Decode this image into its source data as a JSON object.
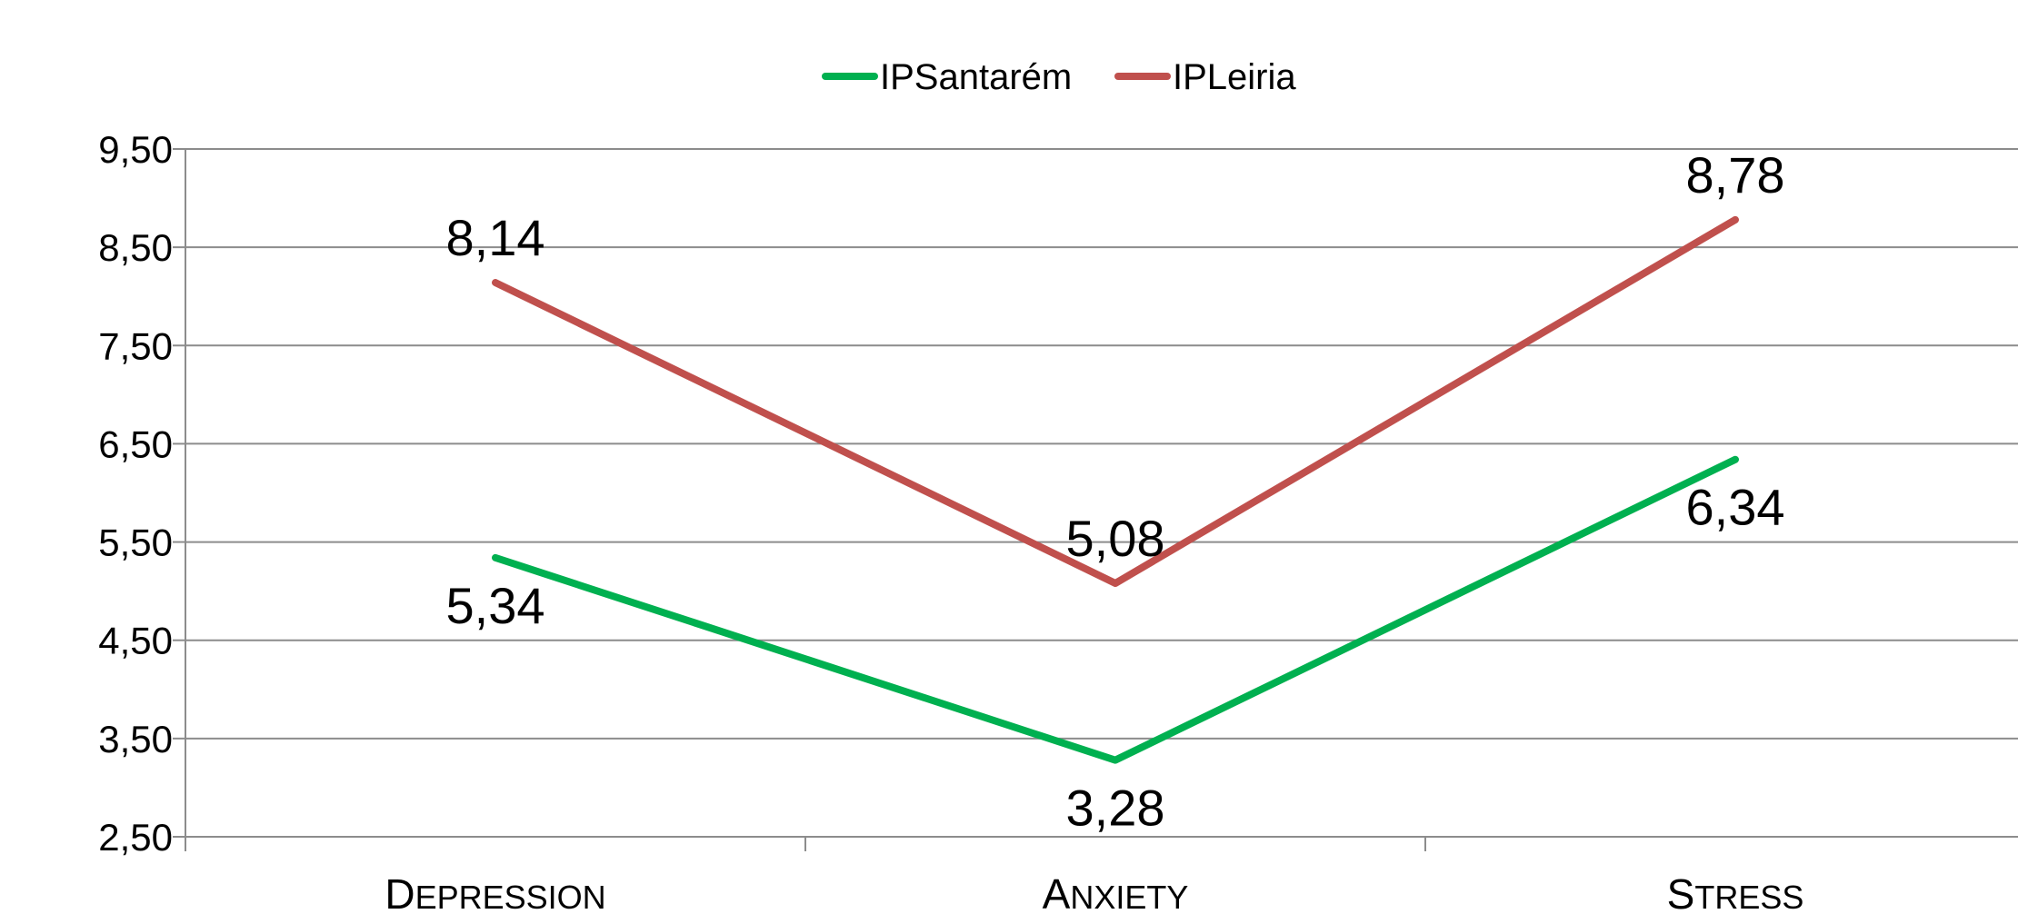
{
  "chart_data": {
    "type": "line",
    "categories": [
      "Depression",
      "Anxiety",
      "Stress"
    ],
    "series": [
      {
        "name": "IPSantarém",
        "values": [
          5.34,
          3.28,
          6.34
        ],
        "labels": [
          "5,34",
          "3,28",
          "6,34"
        ],
        "label_position": [
          "below",
          "below",
          "below"
        ],
        "color": "#00b050"
      },
      {
        "name": "IPLeiria",
        "values": [
          8.14,
          5.08,
          8.78
        ],
        "labels": [
          "8,14",
          "5,08",
          "8,78"
        ],
        "label_position": [
          "above",
          "above",
          "above"
        ],
        "color": "#c0504d"
      }
    ],
    "ylim": [
      2.5,
      9.5
    ],
    "yticks": [
      9.5,
      8.5,
      7.5,
      6.5,
      5.5,
      4.5,
      3.5,
      2.5
    ],
    "ytick_labels": [
      "9,50",
      "8,50",
      "7,50",
      "6,50",
      "5,50",
      "4,50",
      "3,50",
      "2,50"
    ],
    "grid": true,
    "legend": "top-center",
    "title": "",
    "xlabel": "",
    "ylabel": ""
  }
}
